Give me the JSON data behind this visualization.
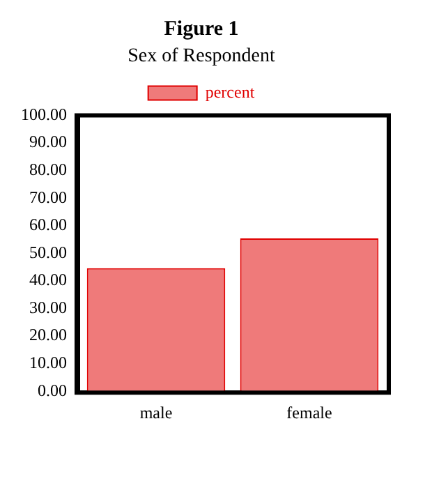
{
  "chart_data": {
    "type": "bar",
    "title": "Figure 1",
    "subtitle": "Sex of Respondent",
    "categories": [
      "male",
      "female"
    ],
    "series": [
      {
        "name": "percent",
        "color": "#ef7a7a",
        "values": [
          44.6,
          55.4
        ]
      }
    ],
    "ylim": [
      0,
      100
    ],
    "yticks": [
      {
        "value": 0,
        "label": "0.00"
      },
      {
        "value": 10,
        "label": "10.00"
      },
      {
        "value": 20,
        "label": "20.00"
      },
      {
        "value": 30,
        "label": "30.00"
      },
      {
        "value": 40,
        "label": "40.00"
      },
      {
        "value": 50,
        "label": "50.00"
      },
      {
        "value": 60,
        "label": "60.00"
      },
      {
        "value": 70,
        "label": "70.00"
      },
      {
        "value": 80,
        "label": "80.00"
      },
      {
        "value": 90,
        "label": "90.00"
      },
      {
        "value": 100,
        "label": "100.00"
      }
    ],
    "grid": false,
    "legend": "top"
  }
}
